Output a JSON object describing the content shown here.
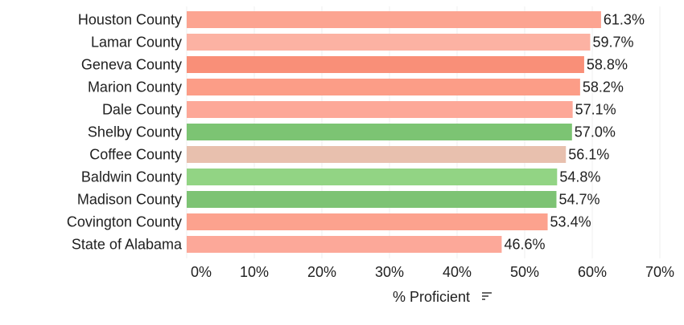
{
  "chart_data": {
    "type": "bar",
    "orientation": "horizontal",
    "categories": [
      "Houston County",
      "Lamar County",
      "Geneva County",
      "Marion County",
      "Dale County",
      "Shelby County",
      "Coffee County",
      "Baldwin County",
      "Madison County",
      "Covington County",
      "State of Alabama"
    ],
    "values": [
      61.3,
      59.7,
      58.8,
      58.2,
      57.1,
      57.0,
      56.1,
      54.8,
      54.7,
      53.4,
      46.6
    ],
    "value_labels": [
      "61.3%",
      "59.7%",
      "58.8%",
      "58.2%",
      "57.1%",
      "57.0%",
      "56.1%",
      "54.8%",
      "54.7%",
      "53.4%",
      "46.6%"
    ],
    "bar_colors": [
      "#fca491",
      "#fcb2a3",
      "#f98f78",
      "#fc9d87",
      "#fda898",
      "#7cc473",
      "#e8c0ae",
      "#92d484",
      "#7dc374",
      "#fca28e",
      "#fca899"
    ],
    "xlabel": "% Proficient",
    "xlim": [
      0,
      70
    ],
    "xticks": [
      0,
      10,
      20,
      30,
      40,
      50,
      60,
      70
    ],
    "xtick_labels": [
      "0%",
      "10%",
      "20%",
      "30%",
      "40%",
      "50%",
      "60%",
      "70%"
    ],
    "grid": true,
    "xlabel_icon": "sort-descending-icon"
  }
}
